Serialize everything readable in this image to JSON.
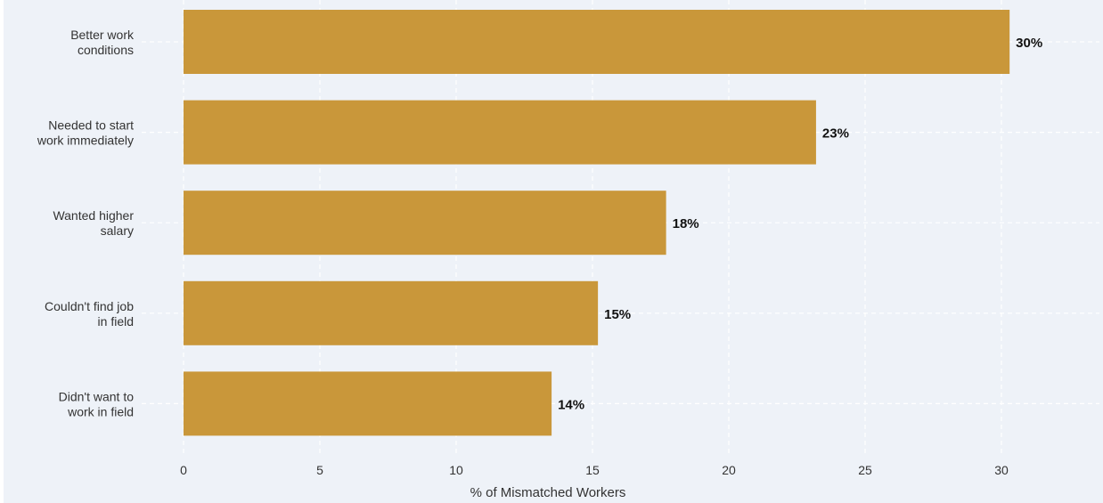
{
  "chart_data": {
    "type": "bar",
    "orientation": "horizontal",
    "categories": [
      [
        "Better work",
        "conditions"
      ],
      [
        "Needed to start",
        "work immediately"
      ],
      [
        "Wanted higher",
        "salary"
      ],
      [
        "Couldn't find job",
        "in field"
      ],
      [
        "Didn't want to",
        "work in field"
      ]
    ],
    "values": [
      30.3,
      23.2,
      17.7,
      15.2,
      13.5
    ],
    "value_labels": [
      "30%",
      "23%",
      "18%",
      "15%",
      "14%"
    ],
    "xlabel": "% of Mismatched Workers",
    "ylabel": "",
    "xlim": [
      0,
      33
    ],
    "xticks": [
      0,
      5,
      10,
      15,
      20,
      25,
      30
    ],
    "grid": true,
    "colors": {
      "bar": "#c9973a",
      "background": "#eef2f8",
      "grid": "#ffffff"
    }
  }
}
